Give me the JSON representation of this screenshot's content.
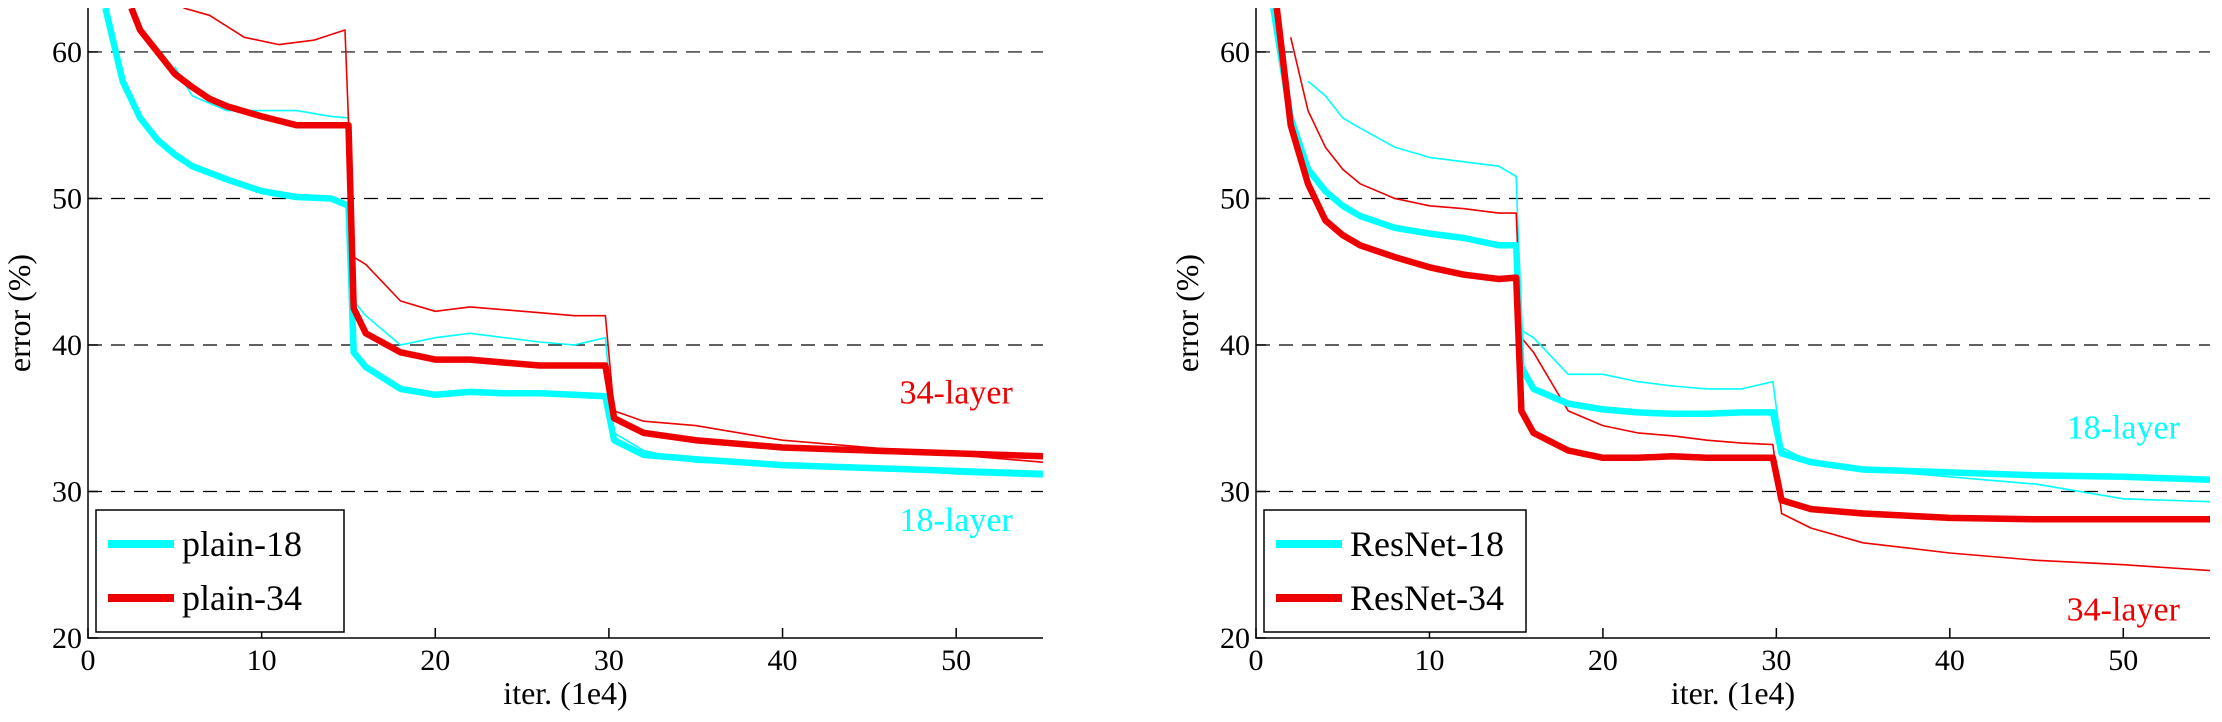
{
  "colors": {
    "cyan": "#00ffff",
    "red": "#ee0000"
  },
  "chart_data": [
    {
      "type": "line",
      "xlabel": "iter. (1e4)",
      "ylabel": "error (%)",
      "xlim": [
        0,
        55
      ],
      "ylim": [
        20,
        63
      ],
      "xticks": [
        "0",
        "10",
        "20",
        "30",
        "40",
        "50"
      ],
      "yticks": [
        "20",
        "30",
        "40",
        "50",
        "60"
      ],
      "grid": "dashed horizontal",
      "legend": "bottom-left",
      "annotations": [
        {
          "text": "34-layer",
          "x": 50,
          "y": 36,
          "color": "red"
        },
        {
          "text": "18-layer",
          "x": 50,
          "y": 27.3,
          "color": "cyan"
        }
      ],
      "series": [
        {
          "name": "plain-18",
          "role": "val",
          "color": "cyan",
          "x": [
            1,
            2,
            3,
            4,
            5,
            6,
            8,
            10,
            12,
            14,
            15,
            15.3,
            16,
            18,
            20,
            22,
            24,
            26,
            28,
            29.8,
            30.3,
            32,
            35,
            40,
            45,
            50,
            55
          ],
          "y": [
            63,
            58,
            55.5,
            54,
            53,
            52.2,
            51.3,
            50.5,
            50.1,
            50,
            49.5,
            39.5,
            38.5,
            37,
            36.6,
            36.8,
            36.7,
            36.7,
            36.6,
            36.5,
            33.5,
            32.5,
            32.2,
            31.8,
            31.6,
            31.4,
            31.2
          ]
        },
        {
          "name": "plain-34",
          "role": "val",
          "color": "red",
          "x": [
            2.5,
            3,
            4,
            5,
            6,
            7,
            8,
            10,
            12,
            14,
            15,
            15.3,
            16,
            18,
            20,
            22,
            24,
            26,
            28,
            29.8,
            30.3,
            32,
            35,
            40,
            45,
            50,
            55
          ],
          "y": [
            63,
            61.5,
            60,
            58.5,
            57.6,
            56.8,
            56.3,
            55.6,
            55,
            55,
            55,
            42.5,
            40.8,
            39.5,
            39,
            39,
            38.8,
            38.6,
            38.6,
            38.6,
            35,
            34,
            33.5,
            33,
            32.8,
            32.6,
            32.4
          ]
        },
        {
          "name": "plain-18 train",
          "role": "train",
          "color": "cyan",
          "x": [
            5,
            6,
            8,
            10,
            12,
            14,
            15,
            15.3,
            16,
            18,
            20,
            22,
            24,
            26,
            28,
            29.8,
            30.3,
            32,
            35,
            40,
            45,
            50,
            55
          ],
          "y": [
            59,
            57,
            56,
            56,
            56,
            55.6,
            55.5,
            43,
            42,
            40,
            40.5,
            40.8,
            40.5,
            40.2,
            40,
            40.5,
            34,
            32.8,
            32,
            31.8,
            31.6,
            31.2,
            31
          ]
        },
        {
          "name": "plain-34 train",
          "role": "train",
          "color": "red",
          "x": [
            5.5,
            7,
            9,
            11,
            13,
            14.8,
            15.3,
            16,
            18,
            20,
            22,
            24,
            26,
            28,
            29.8,
            30.3,
            32,
            35,
            40,
            45,
            50,
            55
          ],
          "y": [
            63,
            62.5,
            61,
            60.5,
            60.8,
            61.5,
            46,
            45.5,
            43,
            42.3,
            42.6,
            42.4,
            42.2,
            42,
            42,
            35.5,
            34.8,
            34.5,
            33.5,
            33,
            32.5,
            32
          ]
        }
      ]
    },
    {
      "type": "line",
      "xlabel": "iter. (1e4)",
      "ylabel": "error (%)",
      "xlim": [
        0,
        55
      ],
      "ylim": [
        20,
        63
      ],
      "xticks": [
        "0",
        "10",
        "20",
        "30",
        "40",
        "50"
      ],
      "yticks": [
        "20",
        "30",
        "40",
        "50",
        "60"
      ],
      "grid": "dashed horizontal",
      "legend": "bottom-left",
      "annotations": [
        {
          "text": "18-layer",
          "x": 50,
          "y": 33.6,
          "color": "cyan"
        },
        {
          "text": "34-layer",
          "x": 50,
          "y": 21.2,
          "color": "red"
        }
      ],
      "series": [
        {
          "name": "ResNet-18",
          "role": "val",
          "color": "cyan",
          "x": [
            1,
            2,
            3,
            4,
            5,
            6,
            8,
            10,
            12,
            14,
            15,
            15.3,
            16,
            18,
            20,
            22,
            24,
            26,
            28,
            29.8,
            30.3,
            32,
            35,
            40,
            45,
            50,
            55
          ],
          "y": [
            63,
            55.5,
            52,
            50.5,
            49.5,
            48.8,
            48,
            47.6,
            47.3,
            46.8,
            46.8,
            38.5,
            37,
            36,
            35.6,
            35.4,
            35.3,
            35.3,
            35.4,
            35.4,
            32.6,
            32,
            31.5,
            31.3,
            31.1,
            31,
            30.8
          ]
        },
        {
          "name": "ResNet-34",
          "role": "val",
          "color": "red",
          "x": [
            1.2,
            2,
            3,
            4,
            5,
            6,
            8,
            10,
            12,
            14,
            15,
            15.3,
            16,
            18,
            20,
            22,
            24,
            26,
            28,
            29.8,
            30.3,
            32,
            35,
            40,
            45,
            50,
            55
          ],
          "y": [
            63,
            55,
            51,
            48.5,
            47.5,
            46.8,
            46,
            45.3,
            44.8,
            44.5,
            44.6,
            35.5,
            34,
            32.8,
            32.3,
            32.3,
            32.4,
            32.3,
            32.3,
            32.3,
            29.4,
            28.8,
            28.5,
            28.2,
            28.1,
            28.1,
            28.1
          ]
        },
        {
          "name": "ResNet-18 train",
          "role": "train",
          "color": "cyan",
          "x": [
            3,
            4,
            5,
            6,
            8,
            10,
            12,
            14,
            15,
            15.3,
            16,
            18,
            20,
            22,
            24,
            26,
            28,
            29.8,
            30.3,
            32,
            35,
            40,
            45,
            50,
            55
          ],
          "y": [
            58,
            57,
            55.5,
            54.8,
            53.5,
            52.8,
            52.5,
            52.2,
            51.5,
            41,
            40.5,
            38,
            38,
            37.5,
            37.2,
            37,
            37,
            37.5,
            33,
            32,
            31.5,
            31,
            30.5,
            29.5,
            29.3
          ]
        },
        {
          "name": "ResNet-34 train",
          "role": "train",
          "color": "red",
          "x": [
            2,
            3,
            4,
            5,
            6,
            8,
            10,
            12,
            14,
            15,
            15.3,
            16,
            18,
            20,
            22,
            24,
            26,
            28,
            29.8,
            30.3,
            32,
            35,
            40,
            45,
            50,
            55
          ],
          "y": [
            61,
            56,
            53.5,
            52,
            51,
            50,
            49.5,
            49.3,
            49,
            49,
            40.5,
            39.5,
            35.5,
            34.5,
            34,
            33.8,
            33.5,
            33.3,
            33.2,
            28.5,
            27.5,
            26.5,
            25.8,
            25.3,
            25,
            24.6
          ]
        }
      ]
    }
  ]
}
